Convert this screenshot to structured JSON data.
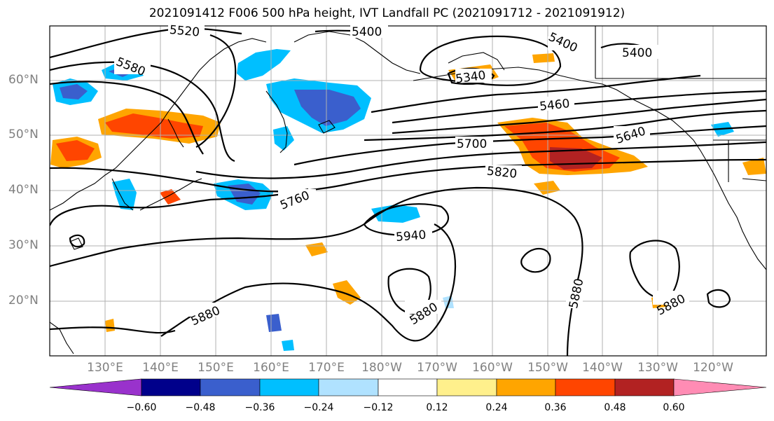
{
  "title": "2021091412 F006 500 hPa height, IVT Landfall PC (2021091712 - 2021091912)",
  "lat_labels": [
    "60°N",
    "50°N",
    "40°N",
    "30°N",
    "20°N"
  ],
  "lon_labels": [
    "130°E",
    "140°E",
    "150°E",
    "160°E",
    "170°E",
    "180°W",
    "170°W",
    "160°W",
    "150°W",
    "140°W",
    "130°W",
    "120°W"
  ],
  "contour_labels": [
    "5520",
    "5400",
    "5400",
    "5400",
    "5580",
    "5340",
    "5460",
    "5640",
    "5700",
    "5820",
    "5760",
    "5940",
    "5880",
    "5880",
    "5880",
    "5880"
  ],
  "colorbar": {
    "ticks": [
      "−0.60",
      "−0.48",
      "−0.36",
      "−0.24",
      "−0.12",
      "0.12",
      "0.24",
      "0.36",
      "0.48",
      "0.60"
    ],
    "colors": [
      "#9932cc",
      "#00008b",
      "#3a5fcd",
      "#00bfff",
      "#b0e2ff",
      "#ffffff",
      "#fff08c",
      "#ffa500",
      "#ff4500",
      "#b22222",
      "#ff8cb4"
    ]
  }
}
